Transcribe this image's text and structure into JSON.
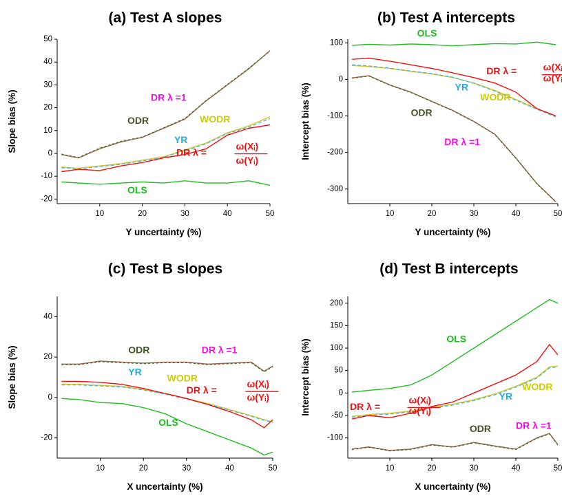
{
  "colors": {
    "OLS": "#22bb22",
    "ODR": "#445522",
    "ODR_line": "#9a6a4a",
    "ODR_dash": "#4a6a2a",
    "WODR": "#cccc00",
    "WODR_line": "#d4c630",
    "YR": "#22aadd",
    "YR_line": "#44b4dc",
    "DR": "#ee1111",
    "DRL1": "#ee11dd"
  },
  "chart_data": [
    {
      "type": "line",
      "title": "(a) Test A slopes",
      "xlabel": "Y uncertainty (%)",
      "ylabel": "Slope bias (%)",
      "xlim": [
        0,
        50
      ],
      "ylim": [
        -22,
        50
      ],
      "xticks": [
        10,
        20,
        30,
        40,
        50
      ],
      "yticks": [
        -20,
        -10,
        0,
        10,
        20,
        30,
        40,
        50
      ],
      "annotations": [
        {
          "text": "DR λ =1",
          "series": "DRL1",
          "x": 22,
          "y": 23
        },
        {
          "text": "ODR",
          "series": "ODR",
          "x": 16.5,
          "y": 13
        },
        {
          "text": "WODR",
          "series": "WODR",
          "x": 33.5,
          "y": 13.5
        },
        {
          "text": "YR",
          "series": "YR",
          "x": 27.5,
          "y": 4.5
        },
        {
          "text": "DR λ =",
          "series": "DR",
          "x": 28,
          "y": -1
        },
        {
          "text": "ω(Xᵢ)",
          "series": "DR",
          "x": 42,
          "y": 1.6
        },
        {
          "text": "ω(Yᵢ)",
          "series": "DR",
          "x": 42,
          "y": -4.5
        },
        {
          "text": "OLS",
          "series": "OLS",
          "x": 16.5,
          "y": -17.5
        }
      ],
      "series": [
        {
          "name": "OLS",
          "x": [
            1,
            5,
            10,
            15,
            20,
            25,
            30,
            35,
            40,
            45,
            50
          ],
          "values": [
            -12.5,
            -13,
            -13.5,
            -13,
            -12.5,
            -13,
            -12,
            -13,
            -13,
            -12,
            -14
          ]
        },
        {
          "name": "ODR",
          "x": [
            1,
            5,
            10,
            15,
            20,
            25,
            30,
            35,
            40,
            45,
            50
          ],
          "values": [
            -0.5,
            -2,
            2,
            5,
            7,
            11,
            15,
            23,
            30,
            37,
            45
          ]
        },
        {
          "name": "DR λ =1",
          "x": [
            1,
            5,
            10,
            15,
            20,
            25,
            30,
            35,
            40,
            45,
            50
          ],
          "values": [
            -0.3,
            -1.8,
            2.3,
            5.3,
            7.2,
            11.2,
            15.3,
            23.2,
            30.2,
            37.3,
            44.8
          ]
        },
        {
          "name": "WODR",
          "x": [
            1,
            5,
            10,
            15,
            20,
            25,
            30,
            35,
            40,
            45,
            50
          ],
          "values": [
            -6,
            -6.5,
            -5.5,
            -4.5,
            -3,
            -1.5,
            1.5,
            4.5,
            9,
            12,
            16
          ]
        },
        {
          "name": "YR",
          "x": [
            1,
            5,
            10,
            15,
            20,
            25,
            30,
            35,
            40,
            45,
            50
          ],
          "values": [
            -6.3,
            -6.8,
            -5.8,
            -4.8,
            -3.3,
            -1.8,
            1.2,
            4.2,
            8.7,
            11.5,
            15.2
          ]
        },
        {
          "name": "DR",
          "x": [
            1,
            5,
            10,
            15,
            20,
            25,
            30,
            35,
            40,
            45,
            50
          ],
          "values": [
            -8,
            -7,
            -7.5,
            -5.5,
            -4,
            -2,
            -0.5,
            2,
            8,
            11,
            12.5
          ]
        }
      ]
    },
    {
      "type": "line",
      "title": "(b) Test A intercepts",
      "xlabel": "Y uncertainty (%)",
      "ylabel": "Intercept bias (%)",
      "xlim": [
        0,
        50
      ],
      "ylim": [
        -340,
        110
      ],
      "xticks": [
        10,
        20,
        30,
        40,
        50
      ],
      "yticks": [
        -300,
        -200,
        -100,
        0,
        100
      ],
      "annotations": [
        {
          "text": "OLS",
          "series": "OLS",
          "x": 16.5,
          "y": 118
        },
        {
          "text": "DR λ =",
          "series": "DR",
          "x": 33,
          "y": 14
        },
        {
          "text": "ω(Xᵢ)",
          "series": "DR",
          "x": 46.5,
          "y": 24
        },
        {
          "text": "ω(Yᵢ)",
          "series": "DR",
          "x": 46.5,
          "y": -6
        },
        {
          "text": "YR",
          "series": "YR",
          "x": 25.5,
          "y": -30
        },
        {
          "text": "WODR",
          "series": "WODR",
          "x": 31.5,
          "y": -58
        },
        {
          "text": "ODR",
          "series": "ODR",
          "x": 15,
          "y": -100
        },
        {
          "text": "DR λ =1",
          "series": "DRL1",
          "x": 23,
          "y": -180
        }
      ],
      "series": [
        {
          "name": "OLS",
          "x": [
            1,
            5,
            10,
            15,
            20,
            25,
            30,
            35,
            40,
            45,
            49.5
          ],
          "values": [
            93,
            96,
            94,
            97,
            95,
            92,
            95,
            98,
            97,
            102,
            95
          ]
        },
        {
          "name": "ODR",
          "x": [
            1,
            5,
            10,
            15,
            20,
            25,
            30,
            35,
            40,
            45,
            49.5
          ],
          "values": [
            4,
            10,
            -15,
            -35,
            -60,
            -85,
            -115,
            -150,
            -215,
            -285,
            -335
          ]
        },
        {
          "name": "DR λ =1",
          "x": [
            1,
            5,
            10,
            15,
            20,
            25,
            30,
            35,
            40,
            45,
            49.5
          ],
          "values": [
            3,
            9,
            -16,
            -36,
            -61,
            -86,
            -116,
            -151,
            -216,
            -286,
            -336
          ]
        },
        {
          "name": "WODR",
          "x": [
            1,
            5,
            10,
            15,
            20,
            25,
            30,
            35,
            40,
            45,
            49.5
          ],
          "values": [
            38,
            35,
            30,
            22,
            15,
            5,
            -10,
            -30,
            -55,
            -80,
            -100
          ]
        },
        {
          "name": "YR",
          "x": [
            1,
            5,
            10,
            15,
            20,
            25,
            30,
            35,
            40,
            45,
            49.5
          ],
          "values": [
            40,
            37,
            31,
            23,
            16,
            6,
            -11,
            -32,
            -57,
            -82,
            -103
          ]
        },
        {
          "name": "DR",
          "x": [
            1,
            5,
            10,
            15,
            20,
            25,
            30,
            35,
            40,
            45,
            49.5
          ],
          "values": [
            55,
            58,
            50,
            40,
            30,
            18,
            5,
            -10,
            -35,
            -80,
            -100
          ]
        }
      ]
    },
    {
      "type": "line",
      "title": "(c) Test B slopes",
      "xlabel": "X uncertainty (%)",
      "ylabel": "Slope bias (%)",
      "xlim": [
        0,
        50
      ],
      "ylim": [
        -30,
        50
      ],
      "xticks": [
        10,
        20,
        30,
        40,
        50
      ],
      "yticks": [
        -20,
        0,
        20,
        40
      ],
      "annotations": [
        {
          "text": "ODR",
          "series": "ODR",
          "x": 16.5,
          "y": 22
        },
        {
          "text": "DR λ =1",
          "series": "DRL1",
          "x": 33.5,
          "y": 22
        },
        {
          "text": "YR",
          "series": "YR",
          "x": 16.5,
          "y": 11
        },
        {
          "text": "WODR",
          "series": "WODR",
          "x": 25.5,
          "y": 8
        },
        {
          "text": "DR λ =",
          "series": "DR",
          "x": 30,
          "y": 2
        },
        {
          "text": "ω(Xᵢ)",
          "series": "DR",
          "x": 44,
          "y": 5
        },
        {
          "text": "ω(Yᵢ)",
          "series": "DR",
          "x": 44,
          "y": -1.5
        },
        {
          "text": "OLS",
          "series": "OLS",
          "x": 23.5,
          "y": -14
        }
      ],
      "series": [
        {
          "name": "OLS",
          "x": [
            1,
            5,
            10,
            15,
            20,
            25,
            30,
            35,
            40,
            45,
            48,
            50
          ],
          "values": [
            -0.5,
            -1,
            -2.5,
            -3,
            -5,
            -8,
            -13,
            -17,
            -21,
            -25,
            -28.5,
            -27
          ]
        },
        {
          "name": "ODR",
          "x": [
            1,
            5,
            10,
            15,
            20,
            25,
            30,
            35,
            40,
            45,
            48,
            50
          ],
          "values": [
            16.5,
            16.5,
            18,
            17.5,
            17,
            17.5,
            17.5,
            16.5,
            17,
            17.5,
            13,
            15.5
          ]
        },
        {
          "name": "DR λ =1",
          "x": [
            1,
            5,
            10,
            15,
            20,
            25,
            30,
            35,
            40,
            45,
            48,
            50
          ],
          "values": [
            16.2,
            16.2,
            17.7,
            17.2,
            16.7,
            17.2,
            17.2,
            16.2,
            16.7,
            17.2,
            12.7,
            15.2
          ]
        },
        {
          "name": "WODR",
          "x": [
            1,
            5,
            10,
            15,
            20,
            25,
            30,
            35,
            40,
            45,
            48,
            50
          ],
          "values": [
            6.5,
            6.5,
            6,
            5.5,
            4,
            2,
            -0.5,
            -3,
            -6,
            -9,
            -11,
            -12
          ]
        },
        {
          "name": "YR",
          "x": [
            1,
            5,
            10,
            15,
            20,
            25,
            30,
            35,
            40,
            45,
            48,
            50
          ],
          "values": [
            6.2,
            6.2,
            5.7,
            5.2,
            3.7,
            1.7,
            -0.8,
            -3.3,
            -6.3,
            -9.3,
            -11.3,
            -12.3
          ]
        },
        {
          "name": "DR",
          "x": [
            1,
            5,
            10,
            15,
            20,
            25,
            30,
            35,
            40,
            45,
            48,
            50
          ],
          "values": [
            8,
            8,
            7.5,
            6.5,
            4.5,
            2,
            -0.5,
            -3.5,
            -7,
            -11,
            -15,
            -11
          ]
        }
      ]
    },
    {
      "type": "line",
      "title": "(d) Test B intercepts",
      "xlabel": "X uncertainty (%)",
      "ylabel": "Intercept bias (%)",
      "xlim": [
        0,
        50
      ],
      "ylim": [
        -145,
        215
      ],
      "xticks": [
        10,
        20,
        30,
        40,
        50
      ],
      "yticks": [
        -100,
        -50,
        0,
        50,
        100,
        150,
        200
      ],
      "annotations": [
        {
          "text": "OLS",
          "series": "OLS",
          "x": 23.5,
          "y": 113
        },
        {
          "text": "DR λ =",
          "series": "DR",
          "x": 0.5,
          "y": -38
        },
        {
          "text": "ω(Xᵢ)",
          "series": "DR",
          "x": 14.5,
          "y": -23
        },
        {
          "text": "ω(Yᵢ)",
          "series": "DR",
          "x": 14.5,
          "y": -47
        },
        {
          "text": "YR",
          "series": "YR",
          "x": 36,
          "y": -15
        },
        {
          "text": "WODR",
          "series": "WODR",
          "x": 41.5,
          "y": 7
        },
        {
          "text": "ODR",
          "series": "ODR",
          "x": 29,
          "y": -87
        },
        {
          "text": "DR λ =1",
          "series": "DRL1",
          "x": 40,
          "y": -80
        }
      ],
      "series": [
        {
          "name": "OLS",
          "x": [
            1,
            5,
            10,
            15,
            20,
            25,
            30,
            35,
            40,
            45,
            48,
            50
          ],
          "values": [
            2,
            6,
            10,
            18,
            40,
            70,
            100,
            130,
            160,
            190,
            208,
            200
          ]
        },
        {
          "name": "ODR",
          "x": [
            1,
            5,
            10,
            15,
            20,
            25,
            30,
            35,
            40,
            45,
            48,
            50
          ],
          "values": [
            -125,
            -120,
            -128,
            -125,
            -115,
            -120,
            -110,
            -118,
            -125,
            -100,
            -90,
            -115
          ]
        },
        {
          "name": "DR λ =1",
          "x": [
            1,
            5,
            10,
            15,
            20,
            25,
            30,
            35,
            40,
            45,
            48,
            50
          ],
          "values": [
            -126,
            -121,
            -129,
            -126,
            -116,
            -121,
            -111,
            -119,
            -126,
            -101,
            -91,
            -116
          ]
        },
        {
          "name": "WODR",
          "x": [
            1,
            5,
            10,
            15,
            20,
            25,
            30,
            35,
            40,
            45,
            48,
            50
          ],
          "values": [
            -52,
            -48,
            -45,
            -40,
            -32,
            -25,
            -15,
            -2,
            15,
            35,
            58,
            60
          ]
        },
        {
          "name": "YR",
          "x": [
            1,
            5,
            10,
            15,
            20,
            25,
            30,
            35,
            40,
            45,
            48,
            50
          ],
          "values": [
            -54,
            -50,
            -47,
            -42,
            -34,
            -27,
            -17,
            -4,
            13,
            33,
            56,
            58
          ]
        },
        {
          "name": "DR",
          "x": [
            1,
            5,
            10,
            15,
            20,
            25,
            30,
            35,
            40,
            45,
            48,
            50
          ],
          "values": [
            -58,
            -50,
            -55,
            -45,
            -30,
            -20,
            0,
            20,
            40,
            70,
            108,
            85
          ]
        }
      ]
    }
  ]
}
